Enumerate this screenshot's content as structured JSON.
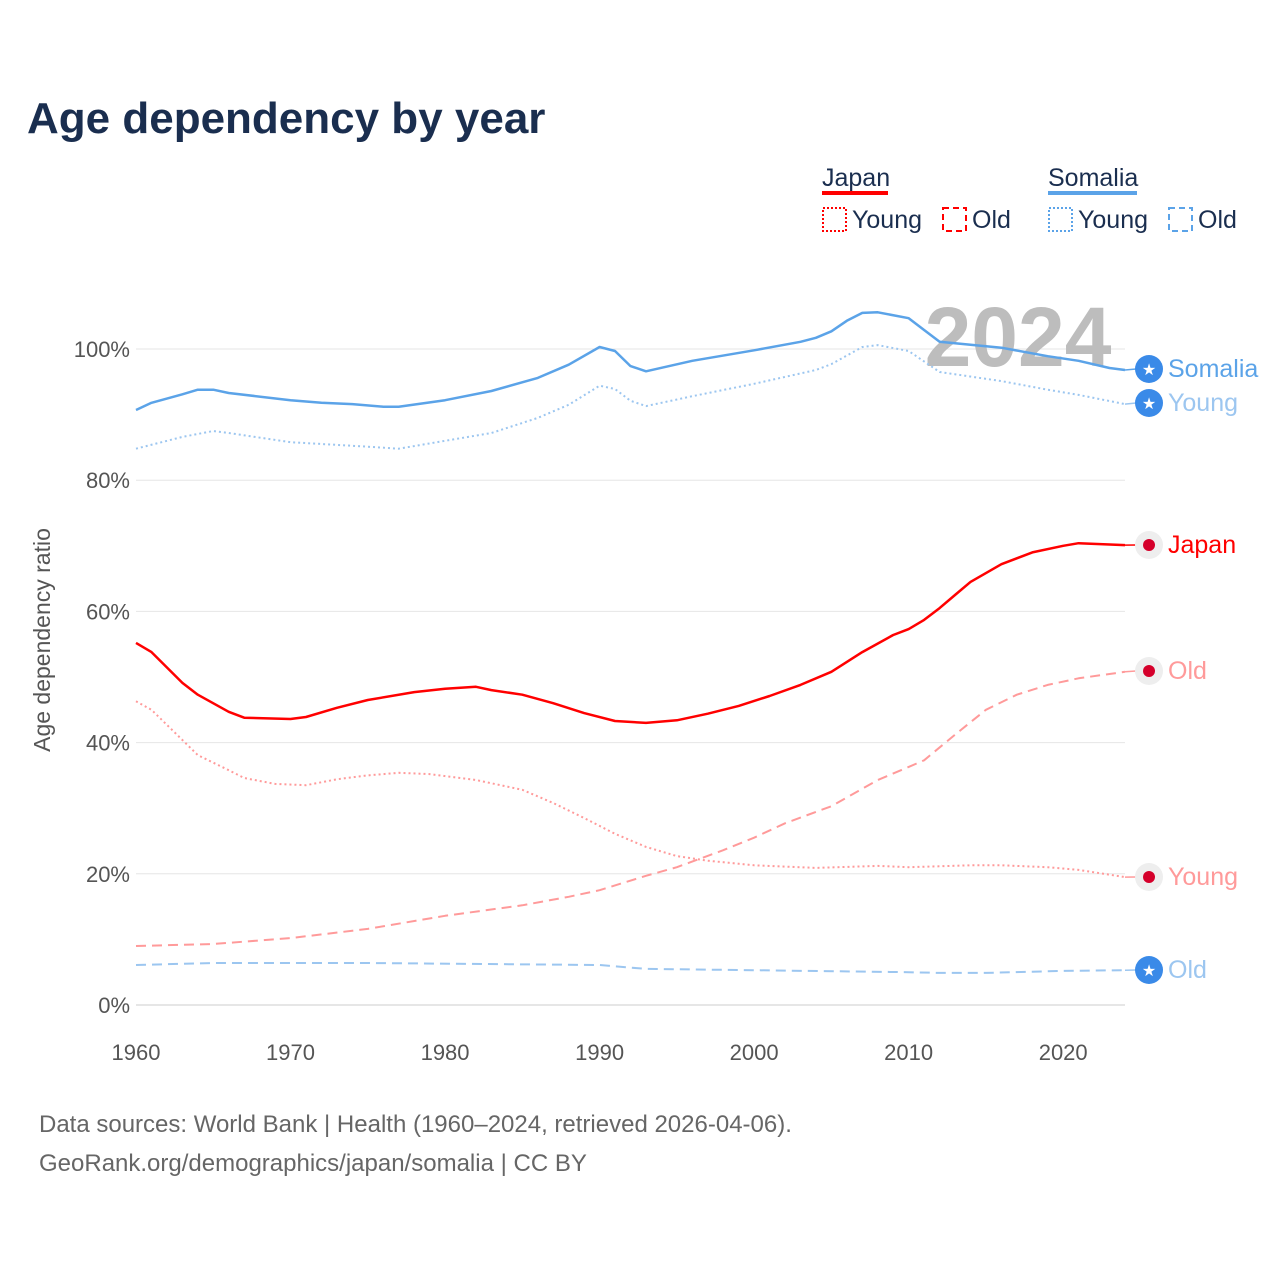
{
  "chart_data": {
    "type": "line",
    "title": "Age dependency by year",
    "ylabel": "Age dependency ratio",
    "xlabel": "",
    "xlim": [
      1960,
      2024
    ],
    "ylim": [
      0,
      110
    ],
    "x_ticks": [
      "1960",
      "1970",
      "1980",
      "1990",
      "2000",
      "2010",
      "2020"
    ],
    "y_ticks": [
      "0%",
      "20%",
      "40%",
      "60%",
      "80%",
      "100%"
    ],
    "grid": true,
    "year_watermark": "2024",
    "legend": {
      "placement": "top-right",
      "groups": [
        {
          "country": "Japan",
          "color": "#ff0000",
          "items": [
            "Young",
            "Old"
          ]
        },
        {
          "country": "Somalia",
          "color": "#5ba3e8",
          "items": [
            "Young",
            "Old"
          ]
        }
      ]
    },
    "series": [
      {
        "name": "Japan",
        "label": "Japan",
        "style": "solid",
        "color": "#ff0000",
        "marker": "japan-flag",
        "points": [
          [
            1960,
            55.2
          ],
          [
            1961,
            53.8
          ],
          [
            1963,
            49.1
          ],
          [
            1964,
            47.3
          ],
          [
            1966,
            44.7
          ],
          [
            1967,
            43.8
          ],
          [
            1970,
            43.6
          ],
          [
            1971,
            43.9
          ],
          [
            1973,
            45.3
          ],
          [
            1975,
            46.5
          ],
          [
            1978,
            47.7
          ],
          [
            1980,
            48.2
          ],
          [
            1982,
            48.5
          ],
          [
            1983,
            48.0
          ],
          [
            1985,
            47.3
          ],
          [
            1987,
            46.0
          ],
          [
            1989,
            44.5
          ],
          [
            1991,
            43.3
          ],
          [
            1993,
            43.0
          ],
          [
            1995,
            43.4
          ],
          [
            1997,
            44.4
          ],
          [
            1999,
            45.6
          ],
          [
            2001,
            47.1
          ],
          [
            2003,
            48.8
          ],
          [
            2005,
            50.8
          ],
          [
            2007,
            53.8
          ],
          [
            2009,
            56.4
          ],
          [
            2010,
            57.3
          ],
          [
            2011,
            58.7
          ],
          [
            2012,
            60.5
          ],
          [
            2013,
            62.5
          ],
          [
            2014,
            64.5
          ],
          [
            2016,
            67.2
          ],
          [
            2018,
            69.0
          ],
          [
            2020,
            70.0
          ],
          [
            2021,
            70.4
          ],
          [
            2024,
            70.1
          ]
        ]
      },
      {
        "name": "Japan Young",
        "label": "Young",
        "style": "dotted",
        "color": "#ff9a9a",
        "marker": "japan-flag",
        "points": [
          [
            1960,
            46.3
          ],
          [
            1961,
            45.0
          ],
          [
            1963,
            40.4
          ],
          [
            1964,
            38.1
          ],
          [
            1966,
            35.8
          ],
          [
            1967,
            34.6
          ],
          [
            1969,
            33.7
          ],
          [
            1971,
            33.5
          ],
          [
            1973,
            34.4
          ],
          [
            1975,
            35.0
          ],
          [
            1977,
            35.4
          ],
          [
            1979,
            35.2
          ],
          [
            1982,
            34.3
          ],
          [
            1985,
            32.8
          ],
          [
            1987,
            30.8
          ],
          [
            1989,
            28.5
          ],
          [
            1991,
            26.1
          ],
          [
            1993,
            24.1
          ],
          [
            1995,
            22.7
          ],
          [
            1997,
            22.0
          ],
          [
            2000,
            21.3
          ],
          [
            2004,
            20.9
          ],
          [
            2008,
            21.2
          ],
          [
            2010,
            21.0
          ],
          [
            2014,
            21.3
          ],
          [
            2016,
            21.3
          ],
          [
            2019,
            21.0
          ],
          [
            2021,
            20.6
          ],
          [
            2024,
            19.5
          ]
        ]
      },
      {
        "name": "Japan Old",
        "label": "Old",
        "style": "dashed",
        "color": "#ff9a9a",
        "marker": "japan-flag",
        "points": [
          [
            1960,
            9.0
          ],
          [
            1965,
            9.3
          ],
          [
            1970,
            10.2
          ],
          [
            1975,
            11.6
          ],
          [
            1980,
            13.6
          ],
          [
            1985,
            15.2
          ],
          [
            1988,
            16.5
          ],
          [
            1990,
            17.5
          ],
          [
            1993,
            19.7
          ],
          [
            1995,
            21.0
          ],
          [
            1998,
            23.6
          ],
          [
            2000,
            25.5
          ],
          [
            2002,
            27.7
          ],
          [
            2005,
            30.3
          ],
          [
            2008,
            34.3
          ],
          [
            2010,
            36.3
          ],
          [
            2011,
            37.3
          ],
          [
            2013,
            41.2
          ],
          [
            2015,
            45.0
          ],
          [
            2017,
            47.3
          ],
          [
            2019,
            48.8
          ],
          [
            2021,
            49.8
          ],
          [
            2024,
            50.8
          ]
        ]
      },
      {
        "name": "Somalia",
        "label": "Somalia",
        "style": "solid",
        "color": "#5ba3e8",
        "marker": "somalia-flag",
        "points": [
          [
            1960,
            90.7
          ],
          [
            1961,
            91.8
          ],
          [
            1963,
            93.1
          ],
          [
            1964,
            93.8
          ],
          [
            1965,
            93.8
          ],
          [
            1966,
            93.3
          ],
          [
            1970,
            92.2
          ],
          [
            1972,
            91.8
          ],
          [
            1974,
            91.6
          ],
          [
            1976,
            91.2
          ],
          [
            1977,
            91.2
          ],
          [
            1980,
            92.2
          ],
          [
            1983,
            93.6
          ],
          [
            1986,
            95.6
          ],
          [
            1988,
            97.6
          ],
          [
            1990,
            100.3
          ],
          [
            1991,
            99.7
          ],
          [
            1992,
            97.4
          ],
          [
            1993,
            96.6
          ],
          [
            1996,
            98.2
          ],
          [
            2000,
            99.8
          ],
          [
            2003,
            101.1
          ],
          [
            2004,
            101.7
          ],
          [
            2005,
            102.7
          ],
          [
            2006,
            104.3
          ],
          [
            2007,
            105.5
          ],
          [
            2008,
            105.6
          ],
          [
            2010,
            104.7
          ],
          [
            2011,
            102.9
          ],
          [
            2012,
            101.1
          ],
          [
            2016,
            100.2
          ],
          [
            2019,
            98.9
          ],
          [
            2021,
            98.2
          ],
          [
            2023,
            97.1
          ],
          [
            2024,
            96.8
          ]
        ]
      },
      {
        "name": "Somalia Young",
        "label": "Young",
        "style": "dotted",
        "color": "#9cc6f0",
        "marker": "somalia-flag",
        "points": [
          [
            1960,
            84.8
          ],
          [
            1963,
            86.6
          ],
          [
            1965,
            87.5
          ],
          [
            1966,
            87.2
          ],
          [
            1970,
            85.8
          ],
          [
            1975,
            85.1
          ],
          [
            1977,
            84.8
          ],
          [
            1980,
            86.0
          ],
          [
            1983,
            87.2
          ],
          [
            1986,
            89.5
          ],
          [
            1988,
            91.5
          ],
          [
            1990,
            94.4
          ],
          [
            1991,
            93.9
          ],
          [
            1992,
            92.1
          ],
          [
            1993,
            91.3
          ],
          [
            1996,
            92.8
          ],
          [
            2000,
            94.7
          ],
          [
            2004,
            96.8
          ],
          [
            2005,
            97.7
          ],
          [
            2007,
            100.3
          ],
          [
            2008,
            100.6
          ],
          [
            2010,
            99.7
          ],
          [
            2012,
            96.5
          ],
          [
            2016,
            95.1
          ],
          [
            2019,
            93.8
          ],
          [
            2021,
            93.0
          ],
          [
            2024,
            91.6
          ]
        ]
      },
      {
        "name": "Somalia Old",
        "label": "Old",
        "style": "dashed",
        "color": "#9cc6f0",
        "marker": "somalia-flag",
        "points": [
          [
            1960,
            6.1
          ],
          [
            1965,
            6.4
          ],
          [
            1975,
            6.4
          ],
          [
            1990,
            6.1
          ],
          [
            1993,
            5.5
          ],
          [
            2000,
            5.3
          ],
          [
            2010,
            5.0
          ],
          [
            2012,
            4.9
          ],
          [
            2015,
            4.9
          ],
          [
            2020,
            5.2
          ],
          [
            2024,
            5.3
          ]
        ]
      }
    ]
  },
  "footer": {
    "line1": "Data sources: World Bank | Health (1960–2024, retrieved 2026-04-06).",
    "line2": "GeoRank.org/demographics/japan/somalia | CC BY"
  }
}
